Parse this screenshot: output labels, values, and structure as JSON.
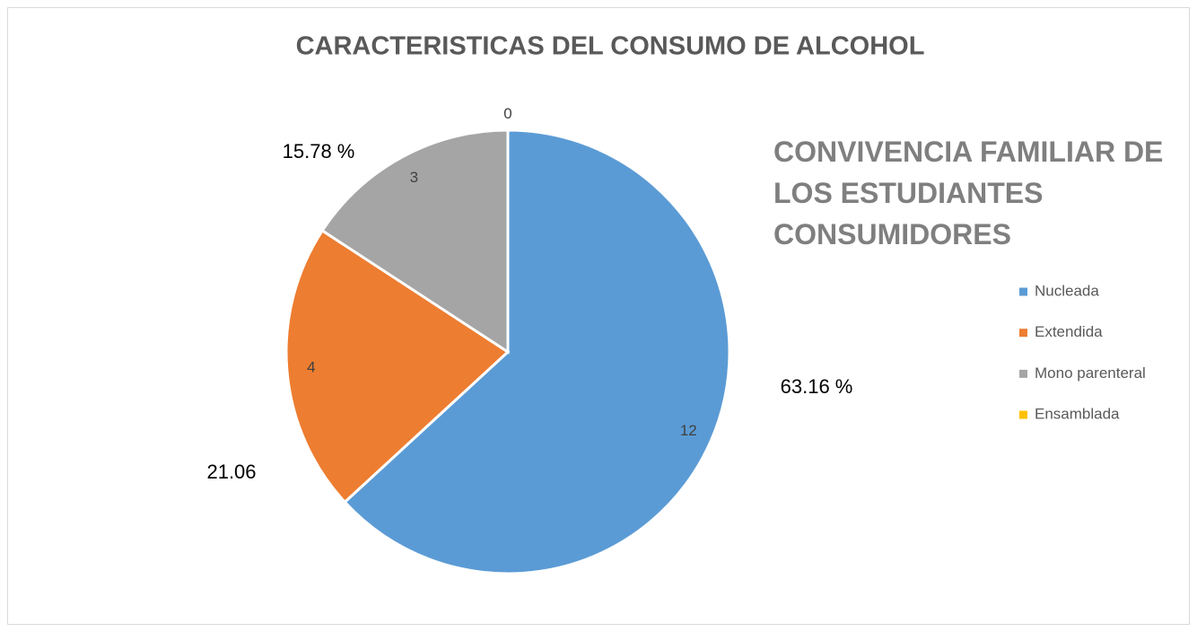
{
  "chart_data": {
    "type": "pie",
    "title": "CARACTERISTICAS DEL CONSUMO DE ALCOHOL",
    "subtitle": "CONVIVENCIA FAMILIAR DE LOS ESTUDIANTES CONSUMIDORES",
    "categories": [
      "Nucleada",
      "Extendida",
      "Mono parenteral",
      "Ensamblada"
    ],
    "values": [
      12,
      4,
      3,
      0
    ],
    "colors": [
      "#5b9bd5",
      "#ed7d31",
      "#a5a5a5",
      "#ffc000"
    ],
    "annotations": [
      "63.16 %",
      "21.06",
      "15.78 %"
    ],
    "legend": "right"
  }
}
